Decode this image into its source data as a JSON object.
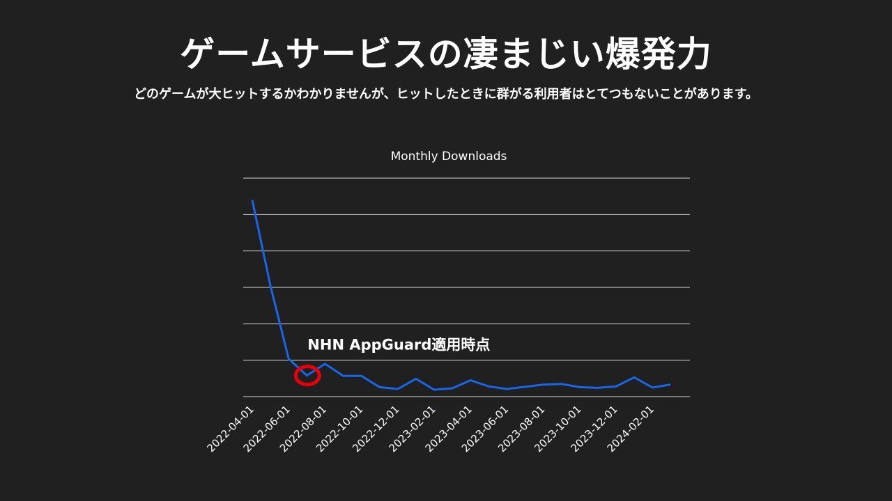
{
  "slide": {
    "title": "ゲームサービスの凄まじい爆発力",
    "subtitle": "どのゲームが大ヒットするかわかりませんが、ヒットしたときに群がる利用者はとてつもないことがあります。"
  },
  "chart_data": {
    "type": "line",
    "title": "Monthly Downloads",
    "xlabel": "",
    "ylabel": "",
    "ylim": [
      0,
      6
    ],
    "grid": true,
    "y_axis_labels_shown": false,
    "x_tick_labels": [
      "2022-04-01",
      "2022-06-01",
      "2022-08-01",
      "2022-10-01",
      "2022-12-01",
      "2023-02-01",
      "2023-04-01",
      "2023-06-01",
      "2023-08-01",
      "2023-10-01",
      "2023-12-01",
      "2024-02-01"
    ],
    "x": [
      "2022-04-01",
      "2022-05-01",
      "2022-06-01",
      "2022-07-01",
      "2022-08-01",
      "2022-09-01",
      "2022-10-01",
      "2022-11-01",
      "2022-12-01",
      "2023-01-01",
      "2023-02-01",
      "2023-03-01",
      "2023-04-01",
      "2023-05-01",
      "2023-06-01",
      "2023-07-01",
      "2023-08-01",
      "2023-09-01",
      "2023-10-01",
      "2023-11-01",
      "2023-12-01",
      "2024-01-01",
      "2024-02-01",
      "2024-03-01"
    ],
    "series": [
      {
        "values": [
          5.4,
          3.04,
          1.04,
          0.58,
          0.9,
          0.57,
          0.57,
          0.26,
          0.21,
          0.49,
          0.19,
          0.23,
          0.45,
          0.28,
          0.21,
          0.27,
          0.33,
          0.35,
          0.26,
          0.24,
          0.28,
          0.53,
          0.25,
          0.33
        ],
        "color": "#1a66e8"
      }
    ],
    "annotations": [
      {
        "text": "NHN AppGuard適用時点",
        "x": "2022-07-01",
        "marker": "circle",
        "marker_color": "#e8000b"
      }
    ]
  }
}
